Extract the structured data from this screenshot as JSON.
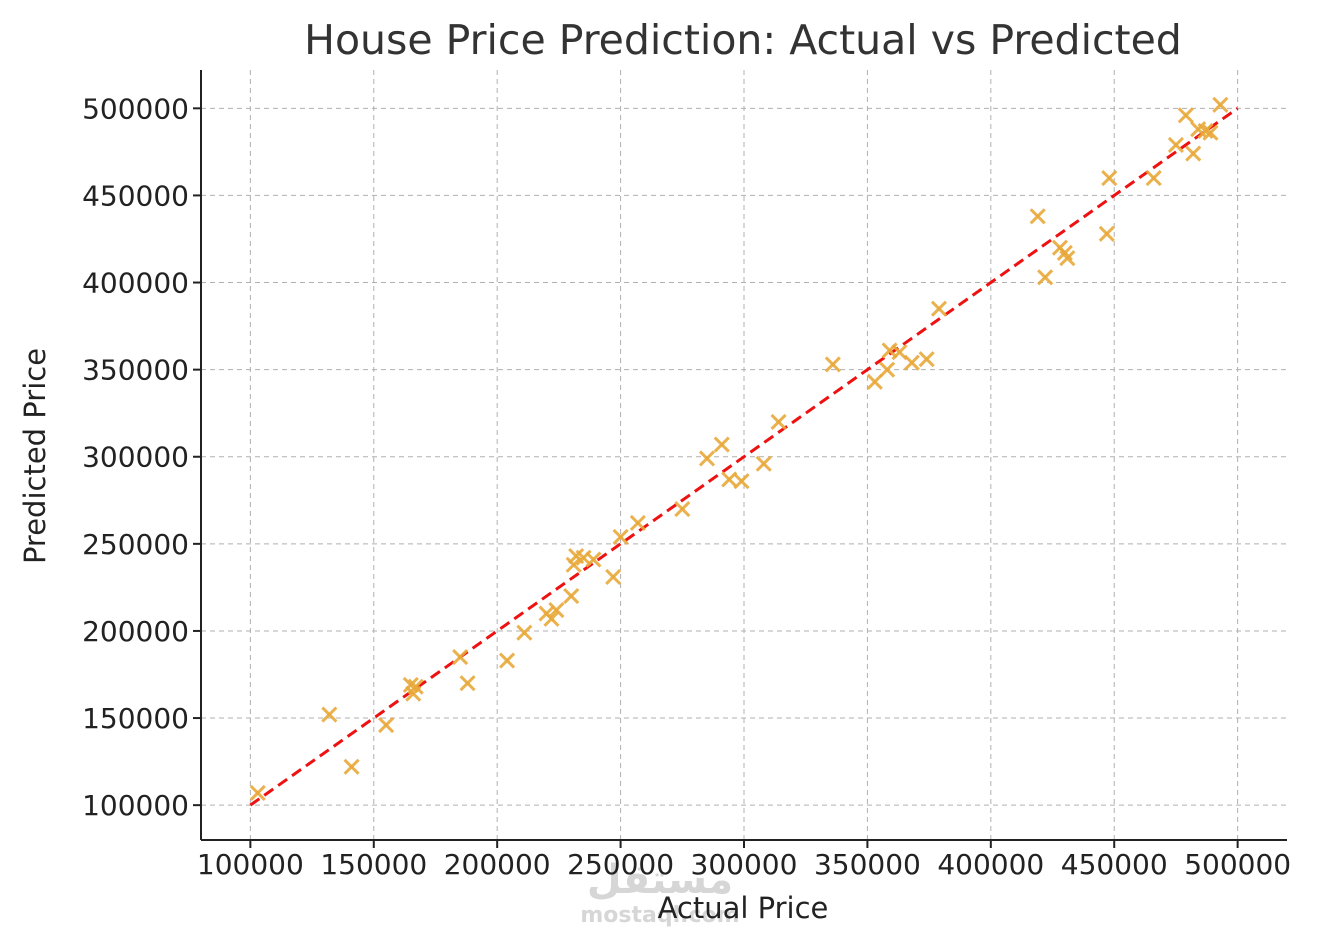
{
  "chart_data": {
    "type": "scatter",
    "title": "House Price Prediction: Actual vs Predicted",
    "xlabel": "Actual Price",
    "ylabel": "Predicted Price",
    "xlim": [
      80000,
      520000
    ],
    "ylim": [
      80000,
      522000
    ],
    "x_ticks": [
      100000,
      150000,
      200000,
      250000,
      300000,
      350000,
      400000,
      450000,
      500000
    ],
    "y_ticks": [
      100000,
      150000,
      200000,
      250000,
      300000,
      350000,
      400000,
      450000,
      500000
    ],
    "x_tick_labels": [
      "100000",
      "150000",
      "200000",
      "250000",
      "300000",
      "350000",
      "400000",
      "450000",
      "500000"
    ],
    "y_tick_labels": [
      "100000",
      "150000",
      "200000",
      "250000",
      "300000",
      "350000",
      "400000",
      "450000",
      "500000"
    ],
    "grid": true,
    "series": [
      {
        "marker": "x",
        "color": "#E8A93A",
        "points": [
          [
            103000,
            107000
          ],
          [
            132000,
            152000
          ],
          [
            141000,
            122000
          ],
          [
            155000,
            146000
          ],
          [
            165000,
            169000
          ],
          [
            166000,
            164000
          ],
          [
            167000,
            168000
          ],
          [
            185000,
            185000
          ],
          [
            188000,
            170000
          ],
          [
            204000,
            183000
          ],
          [
            211000,
            199000
          ],
          [
            220000,
            210000
          ],
          [
            222000,
            207000
          ],
          [
            224000,
            212000
          ],
          [
            230000,
            220000
          ],
          [
            231000,
            238000
          ],
          [
            232000,
            243000
          ],
          [
            235000,
            242000
          ],
          [
            239000,
            241000
          ],
          [
            247000,
            231000
          ],
          [
            250000,
            254000
          ],
          [
            257000,
            262000
          ],
          [
            275000,
            270000
          ],
          [
            285000,
            299000
          ],
          [
            291000,
            307000
          ],
          [
            294000,
            287000
          ],
          [
            299000,
            286000
          ],
          [
            308000,
            296000
          ],
          [
            314000,
            320000
          ],
          [
            336000,
            353000
          ],
          [
            353000,
            343000
          ],
          [
            358000,
            350000
          ],
          [
            359000,
            361000
          ],
          [
            363000,
            360000
          ],
          [
            368000,
            354000
          ],
          [
            374000,
            356000
          ],
          [
            379000,
            385000
          ],
          [
            419000,
            438000
          ],
          [
            422000,
            403000
          ],
          [
            428000,
            420000
          ],
          [
            430000,
            417000
          ],
          [
            431000,
            414000
          ],
          [
            447000,
            428000
          ],
          [
            448000,
            460000
          ],
          [
            466000,
            460000
          ],
          [
            475000,
            479000
          ],
          [
            479000,
            496000
          ],
          [
            482000,
            474000
          ],
          [
            484000,
            488000
          ],
          [
            487000,
            487000
          ],
          [
            489000,
            486000
          ],
          [
            493000,
            502000
          ]
        ]
      }
    ],
    "reference_line": {
      "x": [
        100000,
        500000
      ],
      "y": [
        100000,
        500000
      ],
      "color": "#EE1111",
      "style": "dashed"
    }
  },
  "watermark": {
    "text": "mostaql.com",
    "logo_text": "مستقل"
  }
}
